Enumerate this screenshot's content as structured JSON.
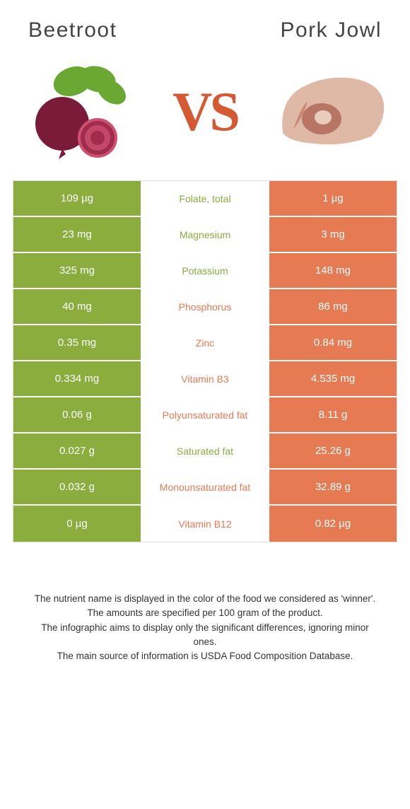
{
  "header": {
    "left_title": "Beetroot",
    "right_title": "Pork Jowl"
  },
  "vs_label": "VS",
  "colors": {
    "left_bg": "#8aad3d",
    "right_bg": "#e57a53",
    "vs_color": "#d35a33"
  },
  "table": {
    "rows": [
      {
        "left": "109 µg",
        "mid": "Folate, total",
        "winner": "left",
        "right": "1 µg"
      },
      {
        "left": "23 mg",
        "mid": "Magnesium",
        "winner": "left",
        "right": "3 mg"
      },
      {
        "left": "325 mg",
        "mid": "Potassium",
        "winner": "left",
        "right": "148 mg"
      },
      {
        "left": "40 mg",
        "mid": "Phosphorus",
        "winner": "right",
        "right": "86 mg"
      },
      {
        "left": "0.35 mg",
        "mid": "Zinc",
        "winner": "right",
        "right": "0.84 mg"
      },
      {
        "left": "0.334 mg",
        "mid": "Vitamin B3",
        "winner": "right",
        "right": "4.535 mg"
      },
      {
        "left": "0.06 g",
        "mid": "Polyunsaturated fat",
        "winner": "right",
        "right": "8.11 g"
      },
      {
        "left": "0.027 g",
        "mid": "Saturated fat",
        "winner": "left",
        "right": "25.26 g"
      },
      {
        "left": "0.032 g",
        "mid": "Monounsaturated fat",
        "winner": "right",
        "right": "32.89 g"
      },
      {
        "left": "0 µg",
        "mid": "Vitamin B12",
        "winner": "right",
        "right": "0.82 µg"
      }
    ]
  },
  "footer": {
    "line1": "The nutrient name is displayed in the color of the food we considered as 'winner'.",
    "line2": "The amounts are specified per 100 gram of the product.",
    "line3": "The infographic aims to display only the significant differences, ignoring minor ones.",
    "line4": "The main source of information is USDA Food Composition Database."
  }
}
